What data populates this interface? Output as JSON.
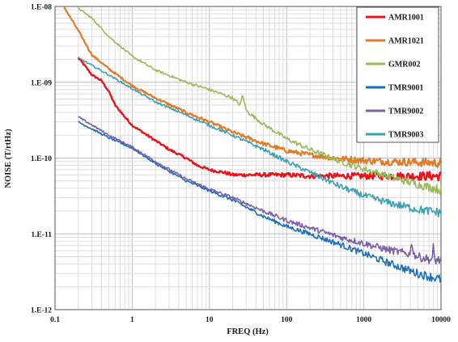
{
  "chart_data": {
    "type": "line",
    "xlabel": "FREQ (Hz)",
    "ylabel": "NOISE (T/rtHz)",
    "x_scale": "log",
    "y_scale": "log",
    "xlim": [
      0.1,
      10000
    ],
    "ylim": [
      1e-12,
      1e-08
    ],
    "grid": true,
    "legend_position": "top-right",
    "x_tick_labels": [
      {
        "value": 0.1,
        "label": "0.1"
      },
      {
        "value": 1,
        "label": "1"
      },
      {
        "value": 10,
        "label": "10"
      },
      {
        "value": 100,
        "label": "100"
      },
      {
        "value": 1000,
        "label": "1000"
      },
      {
        "value": 10000,
        "label": "10000"
      }
    ],
    "y_tick_labels": [
      {
        "value": 1e-08,
        "label": "1.E-08"
      },
      {
        "value": 1e-09,
        "label": "1.E-09"
      },
      {
        "value": 1e-10,
        "label": "1.E-10"
      },
      {
        "value": 1e-11,
        "label": "1.E-11"
      },
      {
        "value": 1e-12,
        "label": "1.E-12"
      }
    ],
    "series": [
      {
        "name": "AMR1001",
        "color": "#e8141b",
        "x": [
          0.2,
          0.25,
          0.3,
          0.4,
          0.5,
          0.6,
          0.8,
          1,
          2,
          3,
          5,
          7,
          10,
          15,
          20,
          30,
          50,
          100,
          200,
          500,
          1000,
          2000,
          5000,
          10000
        ],
        "y": [
          2.1e-09,
          1.6e-09,
          1.25e-09,
          1.05e-09,
          7.5e-10,
          5e-10,
          3.5e-10,
          2.7e-10,
          1.7e-10,
          1.3e-10,
          1e-10,
          8e-11,
          7e-11,
          6.5e-11,
          6e-11,
          6e-11,
          6e-11,
          6e-11,
          5.8e-11,
          5.8e-11,
          5.8e-11,
          5.8e-11,
          5.8e-11,
          5.8e-11
        ]
      },
      {
        "name": "AMR1021",
        "color": "#e07b2a",
        "x": [
          0.13,
          0.2,
          0.3,
          0.5,
          1,
          2,
          5,
          10,
          20,
          50,
          100,
          200,
          500,
          1000,
          2000,
          5000,
          10000
        ],
        "y": [
          1e-08,
          4.8e-09,
          2.3e-09,
          1.5e-09,
          9e-10,
          6.2e-10,
          4e-10,
          3e-10,
          2.2e-10,
          1.55e-10,
          1.25e-10,
          1.1e-10,
          9.8e-11,
          9.3e-11,
          9e-11,
          8.8e-11,
          8.6e-11
        ]
      },
      {
        "name": "GMR002",
        "color": "#9aba59",
        "x": [
          0.2,
          0.3,
          0.5,
          1,
          2,
          5,
          10,
          20,
          25,
          27,
          30,
          50,
          100,
          200,
          500,
          1000,
          2000,
          5000,
          10000
        ],
        "y": [
          9.5e-09,
          7e-09,
          4e-09,
          2.2e-09,
          1.45e-09,
          1e-09,
          8e-10,
          6.2e-10,
          5e-10,
          6.8e-10,
          4.2e-10,
          2.8e-10,
          1.8e-10,
          1.3e-10,
          9e-11,
          7.2e-11,
          5.8e-11,
          4.5e-11,
          3.8e-11
        ]
      },
      {
        "name": "TMR9001",
        "color": "#1b6fb8",
        "x": [
          0.2,
          0.5,
          1,
          2,
          5,
          10,
          20,
          50,
          100,
          200,
          500,
          1000,
          2000,
          5000,
          10000
        ],
        "y": [
          3e-10,
          1.85e-10,
          1.35e-10,
          8.5e-11,
          5e-11,
          3.7e-11,
          2.8e-11,
          1.7e-11,
          1.25e-11,
          1e-11,
          7.2e-12,
          5.5e-12,
          4.2e-12,
          3e-12,
          2.5e-12
        ]
      },
      {
        "name": "TMR9002",
        "color": "#7b5ea8",
        "x": [
          0.2,
          0.5,
          1,
          2,
          5,
          10,
          20,
          50,
          100,
          200,
          500,
          1000,
          2000,
          4000,
          4200,
          4400,
          5000,
          7800,
          8000,
          8200,
          10000
        ],
        "y": [
          3.5e-10,
          2e-10,
          1.4e-10,
          9e-11,
          5.3e-11,
          3.9e-11,
          3e-11,
          2e-11,
          1.5e-11,
          1.2e-11,
          9e-12,
          7.5e-12,
          6.2e-12,
          5.4e-12,
          8.5e-12,
          5.4e-12,
          5e-12,
          4.5e-12,
          8e-12,
          4.5e-12,
          4.5e-12
        ]
      },
      {
        "name": "TMR9003",
        "color": "#3ea0b2",
        "x": [
          0.2,
          0.5,
          1,
          2,
          5,
          10,
          20,
          50,
          100,
          200,
          500,
          1000,
          2000,
          5000,
          10000
        ],
        "y": [
          2.1e-09,
          1.25e-09,
          8.2e-10,
          5.5e-10,
          3.7e-10,
          2.7e-10,
          2e-10,
          1.3e-10,
          9e-11,
          6.5e-11,
          4.2e-11,
          3.2e-11,
          2.6e-11,
          2.1e-11,
          1.9e-11
        ]
      }
    ]
  }
}
